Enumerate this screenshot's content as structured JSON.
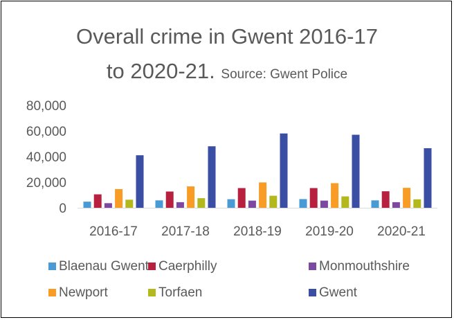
{
  "chart_data": {
    "type": "bar",
    "title": "Overall crime in Gwent  2016-17",
    "title_line2": "to 2020-21.",
    "subtitle": "Source: Gwent Police",
    "xlabel": "",
    "ylabel": "",
    "ylim": [
      0,
      80000
    ],
    "yticks": [
      0,
      20000,
      40000,
      60000,
      80000
    ],
    "ytick_labels": [
      "0",
      "20,000",
      "40,000",
      "60,000",
      "80,000"
    ],
    "grid": false,
    "legend_position": "bottom",
    "categories": [
      "2016-17",
      "2017-18",
      "2018-19",
      "2019-20",
      "2020-21"
    ],
    "series": [
      {
        "name": "Blaenau Gwent",
        "color": "#4a9bd5",
        "values": [
          4800,
          5800,
          6700,
          6800,
          5800
        ]
      },
      {
        "name": "Caerphilly",
        "color": "#b8203f",
        "values": [
          10500,
          12700,
          15400,
          15400,
          12900
        ]
      },
      {
        "name": "Monmouthshire",
        "color": "#7b4aa0",
        "values": [
          3600,
          4400,
          5600,
          5600,
          4400
        ]
      },
      {
        "name": "Newport",
        "color": "#f89c25",
        "values": [
          14600,
          16700,
          19800,
          19200,
          15600
        ]
      },
      {
        "name": "Torfaen",
        "color": "#b3b81c",
        "values": [
          6300,
          7500,
          9400,
          8900,
          6600
        ]
      },
      {
        "name": "Gwent",
        "color": "#3a4ea3",
        "values": [
          41000,
          48000,
          58000,
          57000,
          46500
        ]
      }
    ]
  }
}
